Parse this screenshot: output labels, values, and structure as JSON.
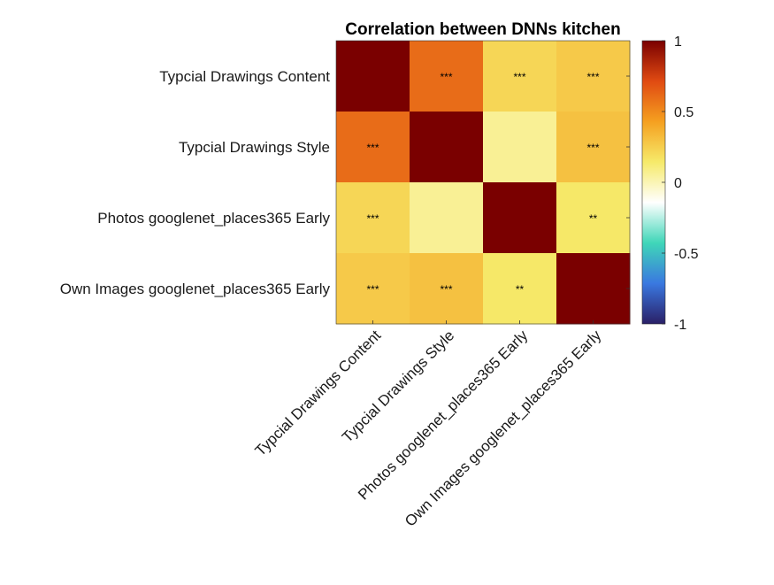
{
  "chart_data": {
    "type": "heatmap",
    "title": "Correlation between DNNs kitchen",
    "row_labels": [
      "Typcial Drawings Content",
      "Typcial Drawings Style",
      "Photos googlenet_places365 Early",
      "Own Images googlenet_places365 Early"
    ],
    "col_labels": [
      "Typcial Drawings Content",
      "Typcial Drawings Style",
      "Photos googlenet_places365 Early",
      "Own Images googlenet_places365 Early"
    ],
    "values": [
      [
        1.0,
        0.6,
        0.22,
        0.27
      ],
      [
        0.6,
        1.0,
        0.06,
        0.3
      ],
      [
        0.22,
        0.06,
        1.0,
        0.15
      ],
      [
        0.27,
        0.3,
        0.15,
        1.0
      ]
    ],
    "significance": [
      [
        "",
        "***",
        "***",
        "***"
      ],
      [
        "***",
        "",
        "",
        "***"
      ],
      [
        "***",
        "",
        "",
        "**"
      ],
      [
        "***",
        "***",
        "**",
        ""
      ]
    ],
    "colorbar": {
      "range": [
        -1,
        1
      ],
      "ticks": [
        1,
        0.5,
        0,
        -0.5,
        -1
      ],
      "tick_labels": [
        "1",
        "0.5",
        "0",
        "-0.5",
        "-1"
      ],
      "stops": [
        "#2a1f66",
        "#3a78e0",
        "#3fd6b8",
        "#ffffff",
        "#f6ea6a",
        "#f5a020",
        "#e04a12",
        "#7a0000"
      ]
    }
  }
}
